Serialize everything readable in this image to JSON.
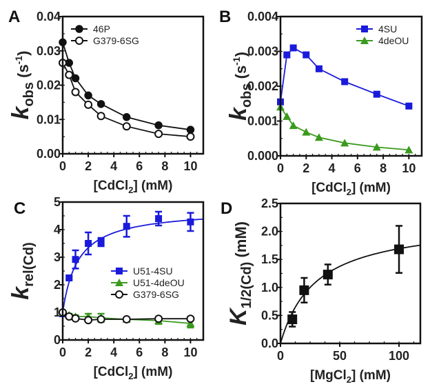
{
  "chart_data": [
    {
      "panel": "A",
      "type": "line",
      "xlabel": {
        "pre": "[CdCl",
        "sub": "2",
        "post": "] (mM)"
      },
      "ylabel": {
        "main": "k",
        "sub": "obs",
        "post": " (s",
        "sup": "-1",
        "end": ")"
      },
      "xlim": [
        0,
        11
      ],
      "ylim": [
        0,
        0.04
      ],
      "xticks": [
        0,
        2,
        4,
        6,
        8,
        10
      ],
      "yticks": [
        0,
        0.01,
        0.02,
        0.03,
        0.04
      ],
      "yticklabels": [
        "0.00",
        "0.01",
        "0.02",
        "0.03",
        "0.04"
      ],
      "legend": "top-left",
      "series": [
        {
          "name": "46P",
          "color": "#111111",
          "marker": "circle-filled",
          "x": [
            0,
            0.5,
            1,
            2,
            3,
            5,
            7.5,
            10
          ],
          "y": [
            0.0325,
            0.0265,
            0.022,
            0.017,
            0.0145,
            0.0107,
            0.0083,
            0.007
          ]
        },
        {
          "name": "G379-6SG",
          "color": "#111111",
          "marker": "circle-open",
          "x": [
            0,
            0.5,
            1,
            2,
            3,
            5,
            7.5,
            10
          ],
          "y": [
            0.0265,
            0.023,
            0.018,
            0.0143,
            0.011,
            0.008,
            0.0058,
            0.005
          ]
        }
      ]
    },
    {
      "panel": "B",
      "type": "line",
      "xlabel": {
        "pre": "[CdCl",
        "sub": "2",
        "post": "] (mM)"
      },
      "ylabel": {
        "main": "k",
        "sub": "obs",
        "post": " (s",
        "sup": "-1",
        "end": ")"
      },
      "xlim": [
        0,
        11
      ],
      "ylim": [
        0,
        0.004
      ],
      "xticks": [
        0,
        2,
        4,
        6,
        8,
        10
      ],
      "yticks": [
        0,
        0.001,
        0.002,
        0.003,
        0.004
      ],
      "yticklabels": [
        "0.000",
        "0.001",
        "0.002",
        "0.003",
        "0.004"
      ],
      "legend": "top-right",
      "series": [
        {
          "name": "4SU",
          "color": "#1a1adb",
          "marker": "square",
          "x": [
            0,
            0.5,
            1,
            2,
            3,
            5,
            7.5,
            10
          ],
          "y": [
            0.00155,
            0.0029,
            0.0031,
            0.0029,
            0.0025,
            0.00213,
            0.00177,
            0.00143
          ]
        },
        {
          "name": "4deOU",
          "color": "#3a9a1e",
          "marker": "triangle",
          "x": [
            0,
            0.5,
            1,
            2,
            3,
            5,
            7.5,
            10
          ],
          "y": [
            0.0014,
            0.00113,
            0.00087,
            0.00068,
            0.00053,
            0.00037,
            0.00025,
            0.00017
          ]
        }
      ]
    },
    {
      "panel": "C",
      "type": "scatter",
      "xlabel": {
        "pre": "[CdCl",
        "sub": "2",
        "post": "] (mM)"
      },
      "ylabel": {
        "main": "k",
        "sub": "rel(Cd)",
        "post": "",
        "sup": "",
        "end": ""
      },
      "xlim": [
        0,
        11
      ],
      "ylim": [
        0,
        5
      ],
      "xticks": [
        0,
        2,
        4,
        6,
        8,
        10
      ],
      "yticks": [
        0,
        1,
        2,
        3,
        4,
        5
      ],
      "yticklabels": [
        "0",
        "1",
        "2",
        "3",
        "4",
        "5"
      ],
      "legend": "center-right",
      "series": [
        {
          "name": "U51-4SU",
          "color": "#1a1adb",
          "marker": "square",
          "x": [
            0,
            0.5,
            1,
            2,
            3,
            5,
            7.5,
            10
          ],
          "y": [
            0.95,
            2.25,
            2.92,
            3.5,
            3.55,
            4.12,
            4.4,
            4.28
          ],
          "err": [
            0,
            0.05,
            0.33,
            0.4,
            0.15,
            0.38,
            0.25,
            0.33
          ],
          "fit": {
            "model": "y0 + A*x/(K+x)",
            "y0": 1,
            "A": 3.75,
            "K": 1.2
          }
        },
        {
          "name": "U51-4deOU",
          "color": "#3a9a1e",
          "marker": "triangle",
          "x": [
            0,
            0.5,
            1,
            2,
            3,
            5,
            7.5,
            10
          ],
          "y": [
            1,
            0.9,
            0.85,
            0.85,
            0.8,
            0.75,
            0.7,
            0.6
          ],
          "err": [
            0,
            0.05,
            0.05,
            0.1,
            0.15,
            0.05,
            0.12,
            0.15
          ],
          "connect": true
        },
        {
          "name": "G379-6SG",
          "color": "#111111",
          "marker": "circle-open",
          "x": [
            0,
            0.5,
            1,
            2,
            3,
            5,
            7.5,
            10
          ],
          "y": [
            1,
            0.85,
            0.78,
            0.72,
            0.75,
            0.75,
            0.77,
            0.77
          ],
          "err": [
            0,
            0,
            0,
            0,
            0,
            0,
            0,
            0
          ],
          "connect": true
        }
      ]
    },
    {
      "panel": "D",
      "type": "scatter",
      "xlabel": {
        "pre": "[MgCl",
        "sub": "2",
        "post": "] (mM)"
      },
      "ylabel": {
        "main": "K",
        "sub": "1/2(Cd)",
        "post": " (mM)",
        "sup": "",
        "end": ""
      },
      "xlim": [
        0,
        118
      ],
      "ylim": [
        0,
        2.5
      ],
      "xticks": [
        0,
        50,
        100
      ],
      "yticks": [
        0,
        0.5,
        1,
        1.5,
        2,
        2.5
      ],
      "yticklabels": [
        "0.0",
        "0.5",
        "1.0",
        "1.5",
        "2.0",
        "2.5"
      ],
      "legend": "none",
      "series": [
        {
          "name": "K1/2(Cd)",
          "color": "#111111",
          "marker": "square",
          "x": [
            10,
            20,
            40,
            100
          ],
          "y": [
            0.43,
            0.95,
            1.23,
            1.68
          ],
          "err": [
            0.13,
            0.22,
            0.18,
            0.42
          ],
          "fit": {
            "model": "A*x/(K+x)",
            "y0": 0,
            "A": 2.2,
            "K": 30
          }
        }
      ]
    }
  ]
}
